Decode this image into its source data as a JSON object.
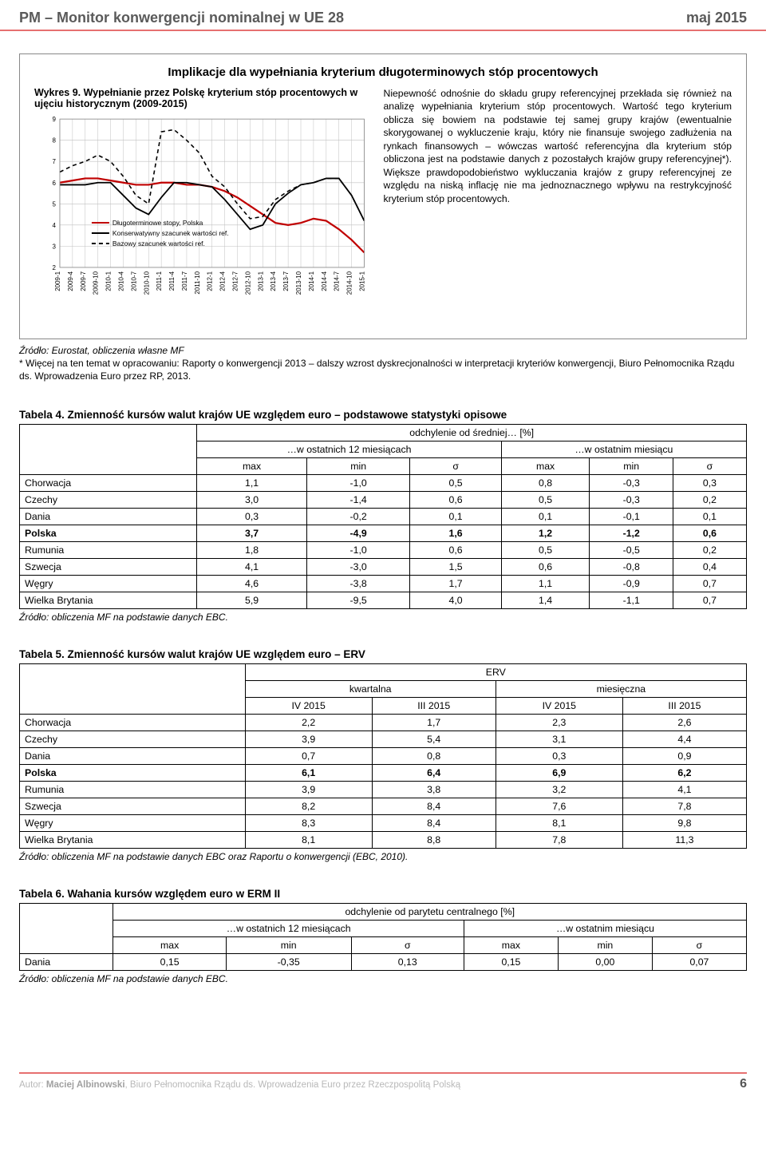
{
  "header": {
    "left": "PM – Monitor konwergencji nominalnej w UE 28",
    "right": "maj 2015"
  },
  "section": {
    "title": "Implikacje dla wypełniania kryterium długoterminowych stóp procentowych",
    "chart_caption": "Wykres 9. Wypełnianie przez Polskę kryterium stóp procentowych w ujęciu historycznym (2009-2015)",
    "paragraph": "Niepewność odnośnie do składu grupy referencyjnej przekłada się również na analizę wypełniania kryterium stóp procentowych. Wartość tego kryterium oblicza się bowiem na podstawie tej samej grupy krajów (ewentualnie skorygowanej o wykluczenie kraju, który nie finansuje swojego zadłużenia na rynkach finansowych – wówczas wartość referencyjna dla kryterium stóp obliczona jest na podstawie danych z pozostałych krajów grupy referencyjnej*). Większe prawdopodobieństwo wykluczania krajów z grupy referencyjnej ze względu na niską inflację nie ma jednoznacznego wpływu na restrykcyjność kryterium stóp procentowych."
  },
  "chart": {
    "type": "line",
    "ylim": [
      2,
      9
    ],
    "ytick_step": 1,
    "background_color": "#ffffff",
    "grid_color": "#c0c0c0",
    "axis_font_size": 8,
    "x_labels": [
      "2009-1",
      "2009-4",
      "2009-7",
      "2009-10",
      "2010-1",
      "2010-4",
      "2010-7",
      "2010-10",
      "2011-1",
      "2011-4",
      "2011-7",
      "2011-10",
      "2012-1",
      "2012-4",
      "2012-7",
      "2012-10",
      "2013-1",
      "2013-4",
      "2013-7",
      "2013-10",
      "2014-1",
      "2014-4",
      "2014-7",
      "2014-10",
      "2015-1"
    ],
    "series": [
      {
        "name": "Długoterminowe stopy, Polska",
        "color": "#c00000",
        "width": 2.2,
        "dash": "none",
        "values": [
          6.0,
          6.1,
          6.2,
          6.2,
          6.1,
          6.0,
          5.9,
          5.9,
          6.0,
          6.0,
          5.9,
          5.9,
          5.8,
          5.6,
          5.3,
          4.9,
          4.5,
          4.1,
          4.0,
          4.1,
          4.3,
          4.2,
          3.8,
          3.3,
          2.7
        ]
      },
      {
        "name": "Konserwatywny szacunek wartości ref.",
        "color": "#000000",
        "width": 1.8,
        "dash": "none",
        "values": [
          5.9,
          5.9,
          5.9,
          6.0,
          6.0,
          5.4,
          4.8,
          4.5,
          5.3,
          6.0,
          6.0,
          5.9,
          5.8,
          5.2,
          4.5,
          3.8,
          4.0,
          5.0,
          5.5,
          5.9,
          6.0,
          6.2,
          6.2,
          5.4,
          4.2
        ]
      },
      {
        "name": "Bazowy szacunek wartości ref.",
        "color": "#000000",
        "width": 1.6,
        "dash": "5,4",
        "values": [
          6.5,
          6.8,
          7.0,
          7.3,
          7.0,
          6.3,
          5.4,
          5.0,
          8.4,
          8.5,
          8.0,
          7.4,
          6.3,
          5.8,
          5.0,
          4.3,
          4.4,
          5.2,
          5.6,
          5.9,
          6.0,
          6.2,
          6.2,
          5.4,
          4.2
        ]
      }
    ],
    "legend": [
      {
        "label": "Długoterminowe stopy, Polska",
        "color": "#c00000",
        "dash": "none"
      },
      {
        "label": "Konserwatywny szacunek wartości ref.",
        "color": "#000000",
        "dash": "none"
      },
      {
        "label": "Bazowy szacunek wartości ref.",
        "color": "#000000",
        "dash": "5,4"
      }
    ]
  },
  "source_note": {
    "line1_italic": "Źródło: Eurostat, obliczenia własne MF",
    "line2": "* Więcej na ten temat w opracowaniu: Raporty o konwergencji 2013 – dalszy wzrost dyskrecjonalności w interpretacji kryteriów konwergencji, Biuro Pełnomocnika Rządu ds. Wprowadzenia Euro przez RP, 2013."
  },
  "table4": {
    "title": "Tabela 4. Zmienność kursów walut krajów UE względem euro – podstawowe statystyki opisowe",
    "header_top": "odchylenie od średniej… [%]",
    "header_left": "…w ostatnich 12 miesiącach",
    "header_right": "…w ostatnim miesiącu",
    "cols": [
      "max",
      "min",
      "σ",
      "max",
      "min",
      "σ"
    ],
    "rows": [
      {
        "label": "Chorwacja",
        "vals": [
          "1,1",
          "-1,0",
          "0,5",
          "0,8",
          "-0,3",
          "0,3"
        ],
        "bold": false
      },
      {
        "label": "Czechy",
        "vals": [
          "3,0",
          "-1,4",
          "0,6",
          "0,5",
          "-0,3",
          "0,2"
        ],
        "bold": false
      },
      {
        "label": "Dania",
        "vals": [
          "0,3",
          "-0,2",
          "0,1",
          "0,1",
          "-0,1",
          "0,1"
        ],
        "bold": false
      },
      {
        "label": "Polska",
        "vals": [
          "3,7",
          "-4,9",
          "1,6",
          "1,2",
          "-1,2",
          "0,6"
        ],
        "bold": true
      },
      {
        "label": "Rumunia",
        "vals": [
          "1,8",
          "-1,0",
          "0,6",
          "0,5",
          "-0,5",
          "0,2"
        ],
        "bold": false
      },
      {
        "label": "Szwecja",
        "vals": [
          "4,1",
          "-3,0",
          "1,5",
          "0,6",
          "-0,8",
          "0,4"
        ],
        "bold": false
      },
      {
        "label": "Węgry",
        "vals": [
          "4,6",
          "-3,8",
          "1,7",
          "1,1",
          "-0,9",
          "0,7"
        ],
        "bold": false
      },
      {
        "label": "Wielka Brytania",
        "vals": [
          "5,9",
          "-9,5",
          "4,0",
          "1,4",
          "-1,1",
          "0,7"
        ],
        "bold": false
      }
    ],
    "note": "Źródło: obliczenia MF na podstawie danych EBC."
  },
  "table5": {
    "title": "Tabela 5. Zmienność kursów walut krajów UE względem euro – ERV",
    "header_top": "ERV",
    "header_left": "kwartalna",
    "header_right": "miesięczna",
    "cols": [
      "IV 2015",
      "III 2015",
      "IV 2015",
      "III 2015"
    ],
    "rows": [
      {
        "label": "Chorwacja",
        "vals": [
          "2,2",
          "1,7",
          "2,3",
          "2,6"
        ],
        "bold": false
      },
      {
        "label": "Czechy",
        "vals": [
          "3,9",
          "5,4",
          "3,1",
          "4,4"
        ],
        "bold": false
      },
      {
        "label": "Dania",
        "vals": [
          "0,7",
          "0,8",
          "0,3",
          "0,9"
        ],
        "bold": false
      },
      {
        "label": "Polska",
        "vals": [
          "6,1",
          "6,4",
          "6,9",
          "6,2"
        ],
        "bold": true
      },
      {
        "label": "Rumunia",
        "vals": [
          "3,9",
          "3,8",
          "3,2",
          "4,1"
        ],
        "bold": false
      },
      {
        "label": "Szwecja",
        "vals": [
          "8,2",
          "8,4",
          "7,6",
          "7,8"
        ],
        "bold": false
      },
      {
        "label": "Węgry",
        "vals": [
          "8,3",
          "8,4",
          "8,1",
          "9,8"
        ],
        "bold": false
      },
      {
        "label": "Wielka Brytania",
        "vals": [
          "8,1",
          "8,8",
          "7,8",
          "11,3"
        ],
        "bold": false
      }
    ],
    "note": "Źródło: obliczenia MF na podstawie danych EBC oraz Raportu o konwergencji (EBC, 2010)."
  },
  "table6": {
    "title": "Tabela 6. Wahania kursów względem euro w ERM II",
    "header_top": "odchylenie od parytetu centralnego [%]",
    "header_left": "…w ostatnich 12 miesiącach",
    "header_right": "…w ostatnim miesiącu",
    "cols": [
      "max",
      "min",
      "σ",
      "max",
      "min",
      "σ"
    ],
    "rows": [
      {
        "label": "Dania",
        "vals": [
          "0,15",
          "-0,35",
          "0,13",
          "0,15",
          "0,00",
          "0,07"
        ],
        "bold": false
      }
    ],
    "note": "Źródło: obliczenia MF na podstawie danych EBC."
  },
  "footer": {
    "text_prefix": "Autor: ",
    "author": "Maciej Albinowski",
    "text_suffix": ", Biuro Pełnomocnika Rządu ds. Wprowadzenia Euro przez Rzeczpospolitą Polską",
    "page": "6"
  }
}
